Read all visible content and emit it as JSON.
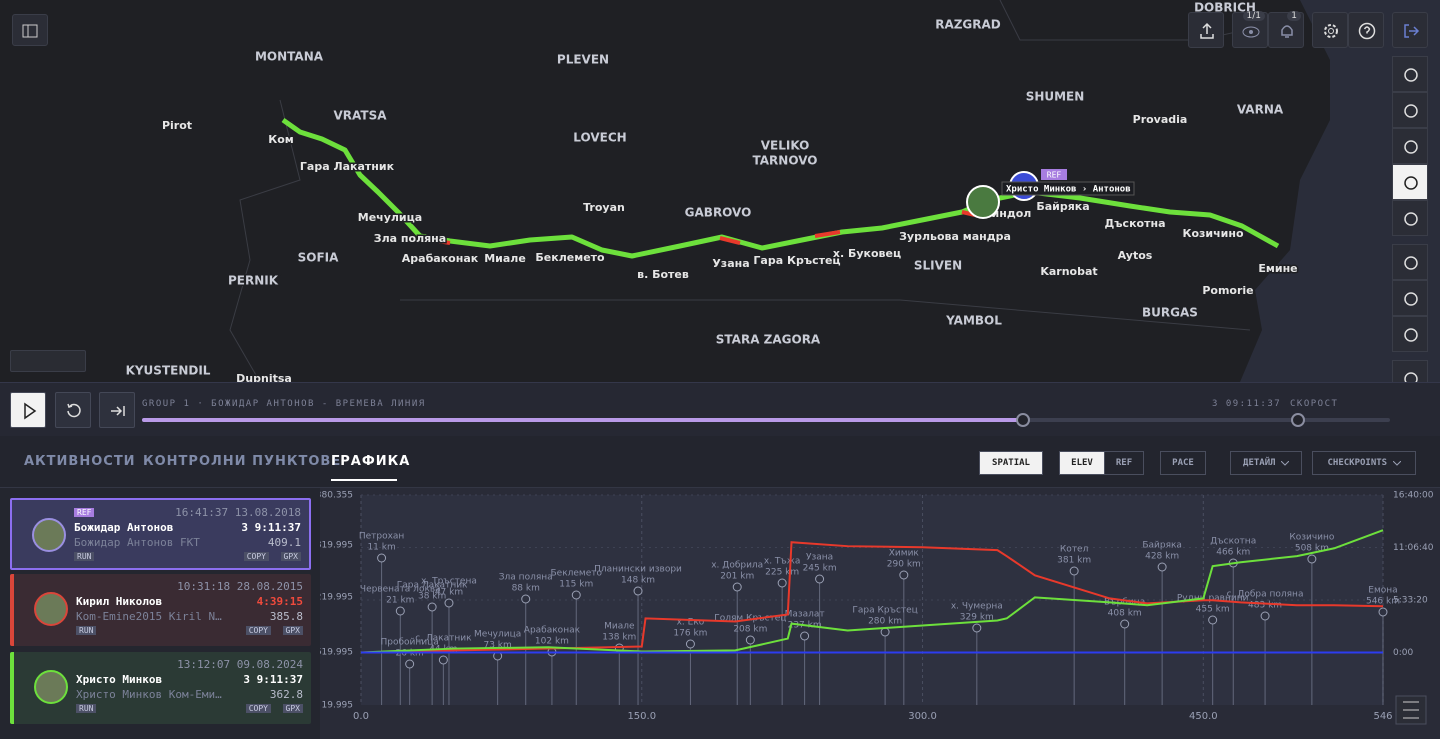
{
  "map": {
    "labels": [
      "MONTANA",
      "Pirot",
      "VRATSA",
      "PLEVEN",
      "LOVECH",
      "VELIKO",
      "TARNOVO",
      "RAZGRAD",
      "SHUMEN",
      "VARNA",
      "Provadia",
      "DOBRICH",
      "Ком",
      "Гара Лакатник",
      "Мечулица",
      "Зла поляна",
      "Арабаконак",
      "Миале",
      "Беклемето",
      "в. Ботев",
      "Узана",
      "Гара Кръстец",
      "х. Буковец",
      "Зурльова мандра",
      "Миндол",
      "Байряка",
      "Дъскотна",
      "Козичино",
      "Емине",
      "Aytos",
      "Pomorie",
      "BURGAS",
      "Karnobat",
      "SLIVEN",
      "YAMBOL",
      "STARA ZAGORA",
      "Troyan",
      "GABROVO",
      "SOFIA",
      "PERNIK",
      "KYUSTENDIL",
      "Dupnitsa"
    ],
    "tooltip": "Христо Минков › Антонов",
    "ref_badge": "REF",
    "views_badge": "1/1",
    "alerts_badge": "1"
  },
  "timeline": {
    "caption": "GROUP 1 · БОЖИДАР АНТОНОВ - ВРЕМЕВА ЛИНИЯ",
    "time": "3 09:11:37",
    "speed": "СКОРОСТ"
  },
  "tabs": [
    "АКТИВНОСТИ",
    "КОНТРОЛНИ ПУНКТОВЕ",
    "ГРАФИКА"
  ],
  "controls": {
    "spatial": "SPATIAL",
    "elev": "ELEV",
    "ref": "REF",
    "pace": "PACE",
    "detail": "ДЕТАЙЛ",
    "checkpoints": "CHECKPOINTS"
  },
  "athletes": [
    {
      "badge": "REF",
      "start": "16:41:37 13.08.2018",
      "name": "Божидар Антонов",
      "time": "3 9:11:37",
      "activity": "Божидар Антонов FKT",
      "distance": 409.1,
      "sport": "RUN",
      "copy": "COPY",
      "gpx": "GPX"
    },
    {
      "start": "10:31:18 28.08.2015",
      "name": "Кирил Николов",
      "time": "4:39:15",
      "activity": "Kom-Emine2015 Kiril N…",
      "distance": 385.8,
      "sport": "RUN",
      "copy": "COPY",
      "gpx": "GPX"
    },
    {
      "start": "13:12:07 09.08.2024",
      "name": "Христо Минков",
      "time": "3 9:11:37",
      "activity": "Христо Минков Ком-Еми…",
      "distance": 362.8,
      "sport": "RUN",
      "copy": "COPY",
      "gpx": "GPX"
    }
  ],
  "chart_data": {
    "type": "line",
    "x": [
      0,
      50,
      100,
      150,
      152,
      200,
      228,
      230,
      260,
      300,
      340,
      345,
      360,
      400,
      420,
      450,
      455,
      470,
      500,
      520,
      546
    ],
    "series": [
      {
        "name": "Кирил Николов",
        "color": "#e8392b",
        "values": [
          0,
          800,
          1500,
          2300,
          13000,
          11800,
          14500,
          42000,
          40500,
          40100,
          39000,
          36700,
          29400,
          20600,
          18700,
          19900,
          19900,
          19100,
          18000,
          18000,
          17600
        ]
      },
      {
        "name": "Христо Минков",
        "color": "#6de03c",
        "values": [
          0,
          1500,
          2000,
          400,
          400,
          800,
          5300,
          11000,
          8400,
          10300,
          12200,
          13000,
          21000,
          19100,
          18000,
          20600,
          32900,
          34400,
          36700,
          39700,
          46600
        ]
      },
      {
        "name": "Божидар Антонов",
        "color": "#2c3cf0",
        "values": [
          0,
          0,
          0,
          0,
          0,
          0,
          0,
          0,
          0,
          0,
          0,
          0,
          0,
          0,
          0,
          0,
          0,
          0,
          0,
          0,
          0
        ]
      }
    ],
    "xlim": [
      0,
      546
    ],
    "xticks": [
      {
        "value": 0,
        "label": "0.0"
      },
      {
        "value": 150,
        "label": "150.0"
      },
      {
        "value": 300,
        "label": "300.0"
      },
      {
        "value": 450,
        "label": "450.0"
      },
      546
    ],
    "ylim": [
      -20000,
      60000
    ],
    "yticks": [
      {
        "value": 60000,
        "label": "16:40:00"
      },
      {
        "value": 40000,
        "label": "11:06:40"
      },
      {
        "value": 20000,
        "label": "5:33:20"
      },
      {
        "value": 0,
        "label": "0:00"
      }
    ],
    "left_labels": [
      "380.355",
      "819.995",
      "219.995",
      "619.995",
      "19.995"
    ],
    "checkpoints": [
      {
        "label": "Петрохан",
        "distance": {
          "value": 11,
          "label": "11 km"
        }
      },
      {
        "label": "Червената локва",
        "distance": {
          "value": 21,
          "label": "21 km"
        }
      },
      {
        "label": "Пробойница",
        "distance": {
          "value": 26,
          "label": "26 km"
        }
      },
      {
        "label": "Гара Лакатник",
        "distance": {
          "value": 38,
          "label": "38 km"
        }
      },
      {
        "label": "с. Лакатник",
        "distance": {
          "value": 44,
          "label": "44 km"
        }
      },
      {
        "label": "х. Тръстена",
        "distance": {
          "value": 47,
          "label": "47 km"
        }
      },
      {
        "label": "Мечулица",
        "distance": {
          "value": 73,
          "label": "73 km"
        }
      },
      {
        "label": "Зла поляна",
        "distance": {
          "value": 88,
          "label": "88 km"
        }
      },
      {
        "label": "Арабаконак",
        "distance": {
          "value": 102,
          "label": "102 km"
        }
      },
      {
        "label": "Беклемето",
        "distance": {
          "value": 115,
          "label": "115 km"
        }
      },
      {
        "label": "Миале",
        "distance": {
          "value": 138,
          "label": "138 km"
        }
      },
      {
        "label": "Планински извори",
        "distance": {
          "value": 148,
          "label": "148 km"
        }
      },
      {
        "label": "х. Еко",
        "distance": {
          "value": 176,
          "label": "176 km"
        }
      },
      {
        "label": "х. Добрила",
        "distance": {
          "value": 201,
          "label": "201 km"
        }
      },
      {
        "label": "Голям Кръстец",
        "distance": {
          "value": 208,
          "label": "208 km"
        }
      },
      {
        "label": "х. Тъжа",
        "distance": {
          "value": 225,
          "label": "225 km"
        }
      },
      {
        "label": "Мазалат",
        "distance": {
          "value": 237,
          "label": "237 km"
        }
      },
      {
        "label": "Узана",
        "distance": {
          "value": 245,
          "label": "245 km"
        }
      },
      {
        "label": "Гара Кръстец",
        "distance": {
          "value": 280,
          "label": "280 km"
        }
      },
      {
        "label": "Химик",
        "distance": {
          "value": 290,
          "label": "290 km"
        }
      },
      {
        "label": "х. Чумерна",
        "distance": {
          "value": 329,
          "label": "329 km"
        }
      },
      {
        "label": "Котел",
        "distance": {
          "value": 381,
          "label": "381 km"
        }
      },
      {
        "label": "Върбица",
        "distance": {
          "value": 408,
          "label": "408 km"
        }
      },
      {
        "label": "Байряка",
        "distance": {
          "value": 428,
          "label": "428 km"
        }
      },
      {
        "label": "Рудни равнини",
        "distance": {
          "value": 455,
          "label": "455 km"
        }
      },
      {
        "label": "Дъскотна",
        "distance": {
          "value": 466,
          "label": "466 km"
        }
      },
      {
        "label": "с. Добра поляна",
        "distance": {
          "value": 483,
          "label": "483 km"
        }
      },
      {
        "label": "Козичино",
        "distance": {
          "value": 508,
          "label": "508 km"
        }
      },
      {
        "label": "Емона",
        "distance": {
          "value": 546,
          "label": "546 km"
        }
      }
    ]
  }
}
